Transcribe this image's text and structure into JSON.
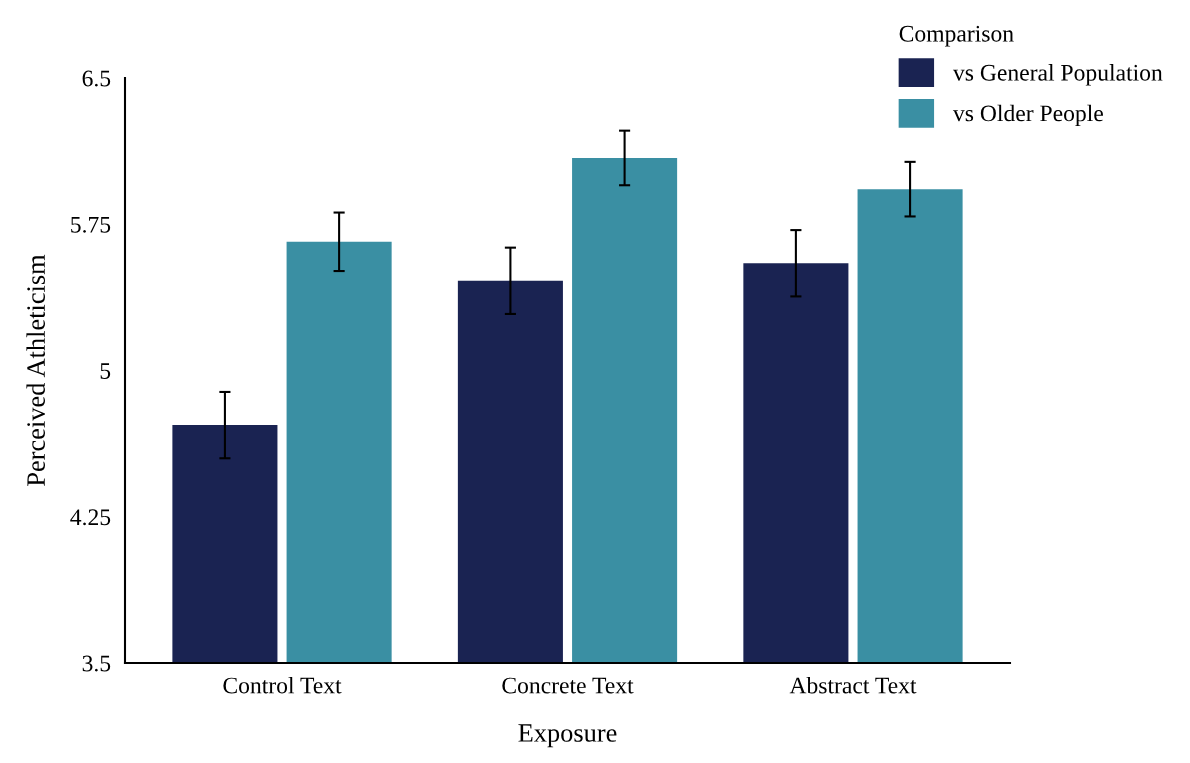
{
  "chart_data": {
    "type": "bar",
    "xlabel": "Exposure",
    "ylabel": "Perceived Athleticism",
    "legend_title": "Comparison",
    "categories": [
      "Control Text",
      "Concrete Text",
      "Abstract Text"
    ],
    "series": [
      {
        "name": "vs General Population",
        "color": "#1a2352",
        "values": [
          4.72,
          5.46,
          5.55
        ],
        "errors": [
          0.17,
          0.17,
          0.17
        ]
      },
      {
        "name": "vs Older People",
        "color": "#3a8fa3",
        "values": [
          5.66,
          6.09,
          5.93
        ],
        "errors": [
          0.15,
          0.14,
          0.14
        ]
      }
    ],
    "ylim": [
      3.5,
      6.5
    ],
    "yticks": [
      3.5,
      4.25,
      5,
      5.75,
      6.5
    ],
    "grid": false,
    "legend": "top right"
  }
}
